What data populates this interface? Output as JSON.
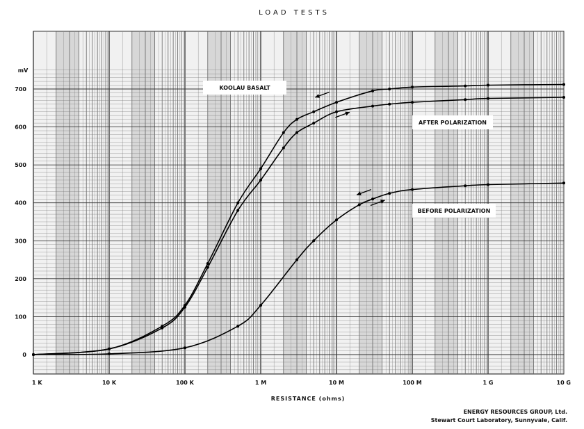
{
  "chart_data": {
    "type": "line",
    "title": "LOAD TESTS",
    "xlabel": "RESISTANCE (ohms)",
    "ylabel": "mV",
    "x_scale": "log",
    "x_unit": "ohms",
    "xlim": [
      1000,
      10000000000
    ],
    "ylim": [
      0,
      750
    ],
    "x_ticks": [
      {
        "value": 1000,
        "label": "1 K"
      },
      {
        "value": 10000,
        "label": "10 K"
      },
      {
        "value": 100000,
        "label": "100 K"
      },
      {
        "value": 1000000,
        "label": "1 M"
      },
      {
        "value": 10000000,
        "label": "10 M"
      },
      {
        "value": 100000000,
        "label": "100 M"
      },
      {
        "value": 1000000000,
        "label": "1 G"
      },
      {
        "value": 10000000000,
        "label": "10 G"
      }
    ],
    "y_ticks": [
      0,
      100,
      200,
      300,
      400,
      500,
      600,
      700
    ],
    "grid": true,
    "series": [
      {
        "x": [
          1000,
          10000,
          50000,
          100000,
          200000,
          500000,
          1000000,
          2000000,
          3000000,
          5000000,
          10000000,
          30000000,
          50000000,
          100000000,
          500000000,
          1000000000,
          10000000000
        ],
        "y": [
          0,
          15,
          75,
          130,
          240,
          400,
          490,
          585,
          620,
          640,
          665,
          695,
          700,
          705,
          708,
          710,
          712
        ]
      },
      {
        "x": [
          1000,
          10000,
          50000,
          100000,
          200000,
          500000,
          1000000,
          2000000,
          3000000,
          5000000,
          10000000,
          30000000,
          50000000,
          100000000,
          500000000,
          1000000000,
          10000000000
        ],
        "y": [
          0,
          15,
          70,
          125,
          230,
          380,
          460,
          545,
          585,
          610,
          640,
          655,
          660,
          665,
          672,
          675,
          678
        ]
      },
      {
        "x": [
          1000,
          10000,
          100000,
          500000,
          1000000,
          3000000,
          5000000,
          10000000,
          20000000,
          30000000,
          50000000,
          100000000,
          500000000,
          1000000000,
          10000000000
        ],
        "y": [
          0,
          2,
          18,
          75,
          130,
          250,
          300,
          355,
          395,
          410,
          425,
          435,
          445,
          448,
          452
        ]
      }
    ],
    "annotations": [
      {
        "text": "KOOLAU  BASALT"
      },
      {
        "text": "AFTER POLARIZATION"
      },
      {
        "text": "BEFORE POLARIZATION"
      }
    ]
  },
  "credit": {
    "line1": "ENERGY RESOURCES GROUP, Ltd.",
    "line2": "Stewart Court Laboratory, Sunnyvale, Calif."
  }
}
